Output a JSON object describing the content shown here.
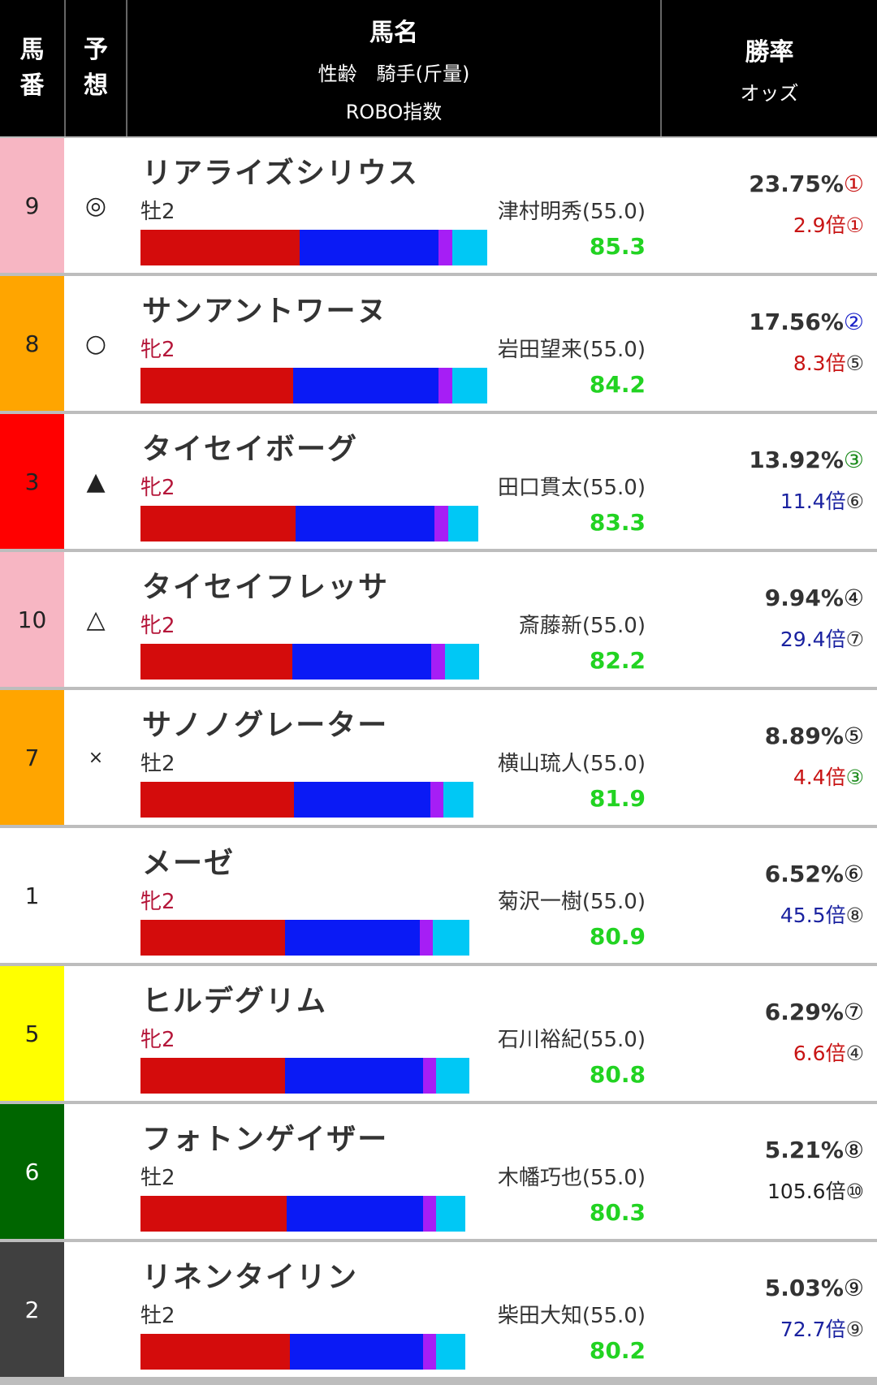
{
  "header": {
    "col_num": "馬番",
    "col_pred": "予想",
    "col_name_main": "馬名",
    "col_name_sub1": "性齢　騎手(斤量)",
    "col_name_sub2": "ROBO指数",
    "col_win_main": "勝率",
    "col_win_sub": "オッズ"
  },
  "colors": {
    "bar_red": "#d40c0c",
    "bar_blue": "#0a1af5",
    "bar_purple": "#a61ef5",
    "bar_cyan": "#00c8f5",
    "robo_green": "#22d322",
    "female_red": "#b5173a"
  },
  "horses": [
    {
      "num": "9",
      "num_bg": "#f7b6c3",
      "num_fg": "#222",
      "mark": "◎",
      "name": "リアライズシリウス",
      "sexage": "牡2",
      "female": false,
      "jockey": "津村明秀(55.0)",
      "robo": "85.3",
      "bar": [
        0.46,
        0.4,
        0.04,
        0.1
      ],
      "bar_total": 0.82,
      "winrate": "23.75%",
      "win_rank": "①",
      "win_rank_color": "#c81414",
      "odds": "2.9倍",
      "odds_rank": "①",
      "odds_color": "#c81414",
      "odds_rank_color": "#c81414"
    },
    {
      "num": "8",
      "num_bg": "#ffa500",
      "num_fg": "#222",
      "mark": "○",
      "name": "サンアントワーヌ",
      "sexage": "牝2",
      "female": true,
      "jockey": "岩田望来(55.0)",
      "robo": "84.2",
      "bar": [
        0.44,
        0.42,
        0.04,
        0.1
      ],
      "bar_total": 0.82,
      "winrate": "17.56%",
      "win_rank": "②",
      "win_rank_color": "#1a22c8",
      "odds": "8.3倍",
      "odds_rank": "⑤",
      "odds_color": "#c81414",
      "odds_rank_color": "#333"
    },
    {
      "num": "3",
      "num_bg": "#ff0000",
      "num_fg": "#222",
      "mark": "▲",
      "name": "タイセイボーグ",
      "sexage": "牝2",
      "female": true,
      "jockey": "田口貫太(55.0)",
      "robo": "83.3",
      "bar": [
        0.46,
        0.41,
        0.04,
        0.09
      ],
      "bar_total": 0.8,
      "winrate": "13.92%",
      "win_rank": "③",
      "win_rank_color": "#1e8c1e",
      "odds": "11.4倍",
      "odds_rank": "⑥",
      "odds_color": "#1a22a0",
      "odds_rank_color": "#333"
    },
    {
      "num": "10",
      "num_bg": "#f7b6c3",
      "num_fg": "#222",
      "mark": "△",
      "name": "タイセイフレッサ",
      "sexage": "牝2",
      "female": true,
      "jockey": "斎藤新(55.0)",
      "robo": "82.2",
      "bar": [
        0.45,
        0.41,
        0.04,
        0.1
      ],
      "bar_total": 0.8,
      "winrate": "9.94%",
      "win_rank": "④",
      "win_rank_color": "#222",
      "odds": "29.4倍",
      "odds_rank": "⑦",
      "odds_color": "#1a22a0",
      "odds_rank_color": "#333"
    },
    {
      "num": "7",
      "num_bg": "#ffa500",
      "num_fg": "#222",
      "mark": "×",
      "name": "サノノグレーター",
      "sexage": "牡2",
      "female": false,
      "jockey": "横山琉人(55.0)",
      "robo": "81.9",
      "bar": [
        0.46,
        0.41,
        0.04,
        0.09
      ],
      "bar_total": 0.79,
      "winrate": "8.89%",
      "win_rank": "⑤",
      "win_rank_color": "#222",
      "odds": "4.4倍",
      "odds_rank": "③",
      "odds_color": "#c81414",
      "odds_rank_color": "#1e8c1e"
    },
    {
      "num": "1",
      "num_bg": "#ffffff",
      "num_fg": "#222",
      "mark": "",
      "name": "メーゼ",
      "sexage": "牝2",
      "female": true,
      "jockey": "菊沢一樹(55.0)",
      "robo": "80.9",
      "bar": [
        0.44,
        0.41,
        0.04,
        0.11
      ],
      "bar_total": 0.78,
      "winrate": "6.52%",
      "win_rank": "⑥",
      "win_rank_color": "#222",
      "odds": "45.5倍",
      "odds_rank": "⑧",
      "odds_color": "#1a22a0",
      "odds_rank_color": "#333"
    },
    {
      "num": "5",
      "num_bg": "#ffff00",
      "num_fg": "#222",
      "mark": "",
      "name": "ヒルデグリム",
      "sexage": "牝2",
      "female": true,
      "jockey": "石川裕紀(55.0)",
      "robo": "80.8",
      "bar": [
        0.44,
        0.42,
        0.04,
        0.1
      ],
      "bar_total": 0.78,
      "winrate": "6.29%",
      "win_rank": "⑦",
      "win_rank_color": "#222",
      "odds": "6.6倍",
      "odds_rank": "④",
      "odds_color": "#c81414",
      "odds_rank_color": "#333"
    },
    {
      "num": "6",
      "num_bg": "#006600",
      "num_fg": "#ffffff",
      "mark": "",
      "name": "フォトンゲイザー",
      "sexage": "牡2",
      "female": false,
      "jockey": "木幡巧也(55.0)",
      "robo": "80.3",
      "bar": [
        0.45,
        0.42,
        0.04,
        0.09
      ],
      "bar_total": 0.77,
      "winrate": "5.21%",
      "win_rank": "⑧",
      "win_rank_color": "#222",
      "odds": "105.6倍",
      "odds_rank": "⑩",
      "odds_color": "#222",
      "odds_rank_color": "#222"
    },
    {
      "num": "2",
      "num_bg": "#404040",
      "num_fg": "#ffffff",
      "mark": "",
      "name": "リネンタイリン",
      "sexage": "牡2",
      "female": false,
      "jockey": "柴田大知(55.0)",
      "robo": "80.2",
      "bar": [
        0.46,
        0.41,
        0.04,
        0.09
      ],
      "bar_total": 0.77,
      "winrate": "5.03%",
      "win_rank": "⑨",
      "win_rank_color": "#222",
      "odds": "72.7倍",
      "odds_rank": "⑨",
      "odds_color": "#1a22a0",
      "odds_rank_color": "#333"
    }
  ]
}
